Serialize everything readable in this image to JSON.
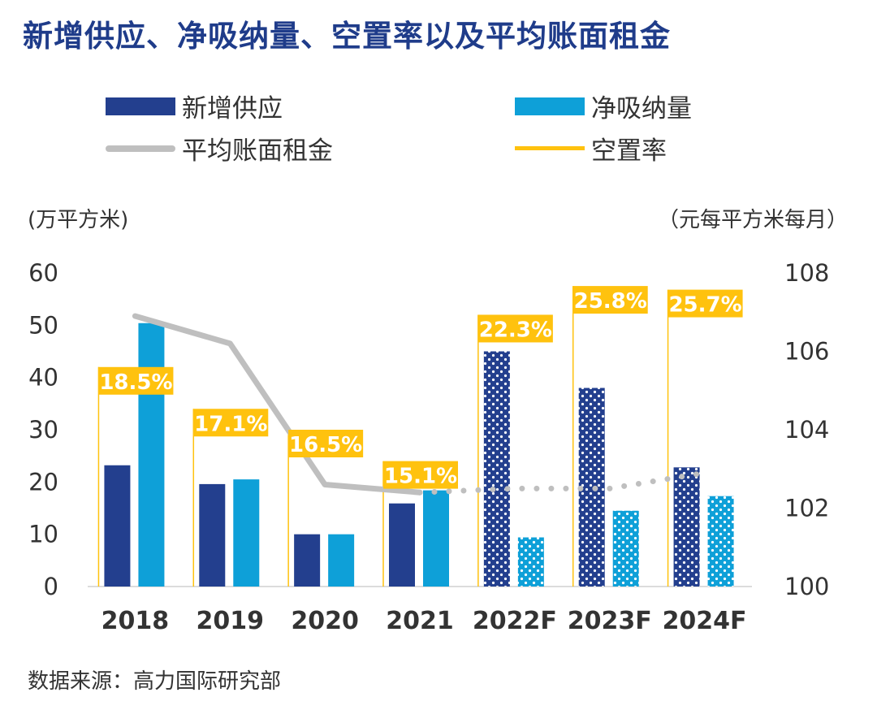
{
  "title": "新增供应、净吸纳量、空置率以及平均账面租金",
  "unit_left": "(万平方米)",
  "unit_right": "（元每平方米每月）",
  "source": "数据来源：高力国际研究部",
  "legend": {
    "supply": "新增供应",
    "absorption": "净吸纳量",
    "rent": "平均账面租金",
    "vacancy": "空置率"
  },
  "colors": {
    "supply": "#233f8e",
    "absorption": "#0ea0d8",
    "rent": "#bfbfbf",
    "vacancy": "#ffc20e",
    "title": "#1f3c8a"
  },
  "chart_data": {
    "type": "bar",
    "title": "新增供应、净吸纳量、空置率以及平均账面租金",
    "categories": [
      "2018",
      "2019",
      "2020",
      "2021",
      "2022F",
      "2023F",
      "2024F"
    ],
    "forecast_from_index": 4,
    "y_left": {
      "label": "(万平方米)",
      "min": 0,
      "max": 60,
      "ticks": [
        0,
        10,
        20,
        30,
        40,
        50,
        60
      ]
    },
    "y_right": {
      "label": "（元每平方米每月）",
      "min": 100,
      "max": 108,
      "ticks": [
        100,
        102,
        104,
        106,
        108
      ]
    },
    "series": [
      {
        "name": "新增供应",
        "type": "bar",
        "axis": "left",
        "values": [
          23.2,
          19.6,
          10.0,
          15.9,
          45.0,
          38.0,
          22.8
        ]
      },
      {
        "name": "净吸纳量",
        "type": "bar",
        "axis": "left",
        "values": [
          50.4,
          20.5,
          10.0,
          18.4,
          9.4,
          14.5,
          17.3
        ]
      },
      {
        "name": "平均账面租金",
        "type": "line",
        "axis": "right",
        "values": [
          106.9,
          106.2,
          102.6,
          102.4,
          102.5,
          102.5,
          102.9
        ]
      },
      {
        "name": "空置率",
        "type": "label",
        "values": [
          "18.5%",
          "17.1%",
          "16.5%",
          "15.1%",
          "22.3%",
          "25.8%",
          "25.7%"
        ],
        "label_top_left_axis": [
          42,
          34,
          30,
          24,
          52,
          57.5,
          56.8
        ]
      }
    ],
    "grid": false,
    "legend_position": "top"
  }
}
